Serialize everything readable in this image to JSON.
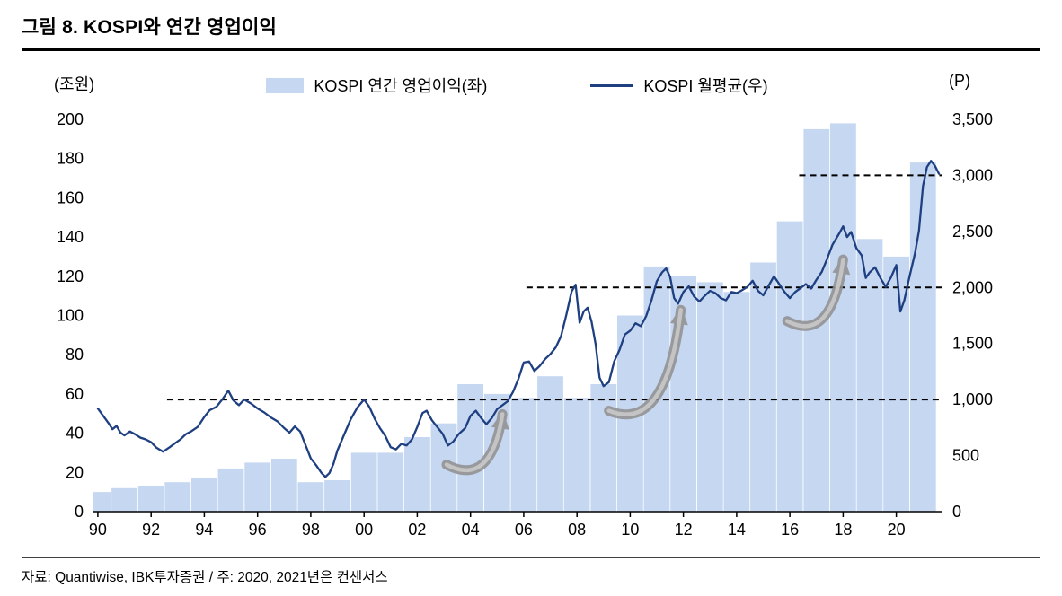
{
  "page": {
    "title": "그림 8. KOSPI와 연간 영업이익",
    "footer": "자료: Quantiwise, IBK투자증권 / 주: 2020, 2021년은 컨센서스"
  },
  "chart": {
    "left_axis_unit": "(조원)",
    "right_axis_unit": "(P)",
    "legend": {
      "bar_label": "KOSPI 연간 영업이익(좌)",
      "line_label": "KOSPI 월평균(우)"
    }
  },
  "chart_data": {
    "type": "combo",
    "title": "그림 8. KOSPI와 연간 영업이익",
    "colors": {
      "bar": "#c6d7f1",
      "line": "#1e3f80",
      "reference": "#000000",
      "arrow": "#8f8f8f",
      "arrow_highlight": "#c9c9c9"
    },
    "x_axis": {
      "min": 1989.8,
      "max": 2021.7,
      "tick_values": [
        1990,
        1992,
        1994,
        1996,
        1998,
        2000,
        2002,
        2004,
        2006,
        2008,
        2010,
        2012,
        2014,
        2016,
        2018,
        2020
      ],
      "tick_labels": [
        "90",
        "92",
        "94",
        "96",
        "98",
        "00",
        "02",
        "04",
        "06",
        "08",
        "10",
        "12",
        "14",
        "16",
        "18",
        "20"
      ]
    },
    "left_axis": {
      "label": "(조원)",
      "min": 0,
      "max": 200,
      "tick_values": [
        0,
        20,
        40,
        60,
        80,
        100,
        120,
        140,
        160,
        180,
        200
      ],
      "tick_labels": [
        "0",
        "20",
        "40",
        "60",
        "80",
        "100",
        "120",
        "140",
        "160",
        "180",
        "200"
      ]
    },
    "right_axis": {
      "label": "(P)",
      "min": 0,
      "max": 3500,
      "tick_values": [
        0,
        500,
        1000,
        1500,
        2000,
        2500,
        3000,
        3500
      ],
      "tick_labels": [
        "0",
        "500",
        "1,000",
        "1,500",
        "2,000",
        "2,500",
        "3,000",
        "3,500"
      ]
    },
    "series": [
      {
        "name": "KOSPI 연간 영업이익(좌)",
        "type": "bar",
        "axis": "left",
        "unit": "조원",
        "categories": [
          1990,
          1991,
          1992,
          1993,
          1994,
          1995,
          1996,
          1997,
          1998,
          1999,
          2000,
          2001,
          2002,
          2003,
          2004,
          2005,
          2006,
          2007,
          2008,
          2009,
          2010,
          2011,
          2012,
          2013,
          2014,
          2015,
          2016,
          2017,
          2018,
          2019,
          2020,
          2021
        ],
        "values": [
          10,
          12,
          13,
          15,
          17,
          22,
          25,
          27,
          15,
          16,
          30,
          30,
          38,
          45,
          65,
          60,
          58,
          69,
          58,
          65,
          100,
          125,
          120,
          117,
          112,
          127,
          148,
          195,
          198,
          139,
          130,
          178
        ]
      },
      {
        "name": "KOSPI 월평균(우)",
        "type": "line",
        "axis": "right",
        "unit": "P",
        "points": [
          [
            1990,
            920
          ],
          [
            1990.2,
            855
          ],
          [
            1990.4,
            790
          ],
          [
            1990.55,
            735
          ],
          [
            1990.7,
            765
          ],
          [
            1990.85,
            705
          ],
          [
            1991,
            680
          ],
          [
            1991.2,
            715
          ],
          [
            1991.4,
            690
          ],
          [
            1991.6,
            660
          ],
          [
            1991.8,
            645
          ],
          [
            1992,
            620
          ],
          [
            1992.2,
            570
          ],
          [
            1992.45,
            535
          ],
          [
            1992.7,
            575
          ],
          [
            1992.9,
            610
          ],
          [
            1993.1,
            645
          ],
          [
            1993.3,
            690
          ],
          [
            1993.5,
            715
          ],
          [
            1993.75,
            755
          ],
          [
            1994,
            845
          ],
          [
            1994.2,
            905
          ],
          [
            1994.45,
            935
          ],
          [
            1994.7,
            1010
          ],
          [
            1994.9,
            1080
          ],
          [
            1995.1,
            990
          ],
          [
            1995.3,
            950
          ],
          [
            1995.5,
            1000
          ],
          [
            1995.75,
            965
          ],
          [
            1996,
            920
          ],
          [
            1996.25,
            885
          ],
          [
            1996.5,
            840
          ],
          [
            1996.75,
            805
          ],
          [
            1997,
            745
          ],
          [
            1997.2,
            705
          ],
          [
            1997.4,
            760
          ],
          [
            1997.6,
            715
          ],
          [
            1997.8,
            595
          ],
          [
            1998,
            475
          ],
          [
            1998.2,
            415
          ],
          [
            1998.4,
            345
          ],
          [
            1998.55,
            310
          ],
          [
            1998.7,
            345
          ],
          [
            1998.85,
            425
          ],
          [
            1999,
            545
          ],
          [
            1999.25,
            685
          ],
          [
            1999.5,
            825
          ],
          [
            1999.75,
            930
          ],
          [
            2000,
            1000
          ],
          [
            2000.2,
            935
          ],
          [
            2000.4,
            830
          ],
          [
            2000.6,
            745
          ],
          [
            2000.8,
            675
          ],
          [
            2001,
            575
          ],
          [
            2001.2,
            555
          ],
          [
            2001.4,
            605
          ],
          [
            2001.6,
            590
          ],
          [
            2001.8,
            645
          ],
          [
            2002,
            755
          ],
          [
            2002.2,
            880
          ],
          [
            2002.35,
            900
          ],
          [
            2002.55,
            815
          ],
          [
            2002.75,
            755
          ],
          [
            2002.95,
            695
          ],
          [
            2003.15,
            590
          ],
          [
            2003.35,
            625
          ],
          [
            2003.55,
            690
          ],
          [
            2003.8,
            745
          ],
          [
            2004,
            855
          ],
          [
            2004.2,
            900
          ],
          [
            2004.4,
            835
          ],
          [
            2004.6,
            780
          ],
          [
            2004.8,
            835
          ],
          [
            2005,
            915
          ],
          [
            2005.2,
            950
          ],
          [
            2005.4,
            985
          ],
          [
            2005.6,
            1070
          ],
          [
            2005.8,
            1185
          ],
          [
            2006,
            1330
          ],
          [
            2006.2,
            1340
          ],
          [
            2006.4,
            1255
          ],
          [
            2006.6,
            1300
          ],
          [
            2006.8,
            1360
          ],
          [
            2007,
            1405
          ],
          [
            2007.2,
            1465
          ],
          [
            2007.4,
            1565
          ],
          [
            2007.6,
            1755
          ],
          [
            2007.8,
            1965
          ],
          [
            2007.95,
            2025
          ],
          [
            2008.1,
            1685
          ],
          [
            2008.25,
            1785
          ],
          [
            2008.4,
            1820
          ],
          [
            2008.55,
            1695
          ],
          [
            2008.7,
            1495
          ],
          [
            2008.85,
            1195
          ],
          [
            2009,
            1120
          ],
          [
            2009.2,
            1155
          ],
          [
            2009.4,
            1340
          ],
          [
            2009.6,
            1445
          ],
          [
            2009.8,
            1580
          ],
          [
            2010,
            1615
          ],
          [
            2010.2,
            1680
          ],
          [
            2010.4,
            1655
          ],
          [
            2010.6,
            1745
          ],
          [
            2010.8,
            1885
          ],
          [
            2011,
            2055
          ],
          [
            2011.2,
            2135
          ],
          [
            2011.35,
            2170
          ],
          [
            2011.5,
            2095
          ],
          [
            2011.65,
            1905
          ],
          [
            2011.8,
            1855
          ],
          [
            2012,
            1960
          ],
          [
            2012.2,
            2010
          ],
          [
            2012.4,
            1920
          ],
          [
            2012.6,
            1875
          ],
          [
            2012.8,
            1925
          ],
          [
            2013,
            1970
          ],
          [
            2013.2,
            1950
          ],
          [
            2013.4,
            1905
          ],
          [
            2013.6,
            1885
          ],
          [
            2013.8,
            1960
          ],
          [
            2014,
            1950
          ],
          [
            2014.2,
            1975
          ],
          [
            2014.4,
            2005
          ],
          [
            2014.6,
            2060
          ],
          [
            2014.8,
            1970
          ],
          [
            2015,
            1930
          ],
          [
            2015.2,
            2015
          ],
          [
            2015.4,
            2100
          ],
          [
            2015.6,
            2030
          ],
          [
            2015.8,
            1960
          ],
          [
            2016,
            1905
          ],
          [
            2016.2,
            1960
          ],
          [
            2016.4,
            1995
          ],
          [
            2016.6,
            2030
          ],
          [
            2016.8,
            1990
          ],
          [
            2017,
            2070
          ],
          [
            2017.2,
            2140
          ],
          [
            2017.4,
            2255
          ],
          [
            2017.6,
            2380
          ],
          [
            2017.85,
            2480
          ],
          [
            2018,
            2545
          ],
          [
            2018.15,
            2450
          ],
          [
            2018.3,
            2495
          ],
          [
            2018.5,
            2350
          ],
          [
            2018.7,
            2285
          ],
          [
            2018.85,
            2085
          ],
          [
            2019,
            2135
          ],
          [
            2019.2,
            2180
          ],
          [
            2019.4,
            2085
          ],
          [
            2019.6,
            2005
          ],
          [
            2019.8,
            2090
          ],
          [
            2020,
            2200
          ],
          [
            2020.15,
            1785
          ],
          [
            2020.3,
            1885
          ],
          [
            2020.5,
            2105
          ],
          [
            2020.7,
            2305
          ],
          [
            2020.85,
            2505
          ],
          [
            2021,
            2905
          ],
          [
            2021.15,
            3075
          ],
          [
            2021.3,
            3130
          ],
          [
            2021.45,
            3085
          ],
          [
            2021.6,
            3015
          ]
        ]
      }
    ],
    "reference_lines": [
      {
        "axis": "right",
        "value": 1000,
        "from_year": 1992.6
      },
      {
        "axis": "right",
        "value": 2000,
        "from_year": 2006.1
      },
      {
        "axis": "right",
        "value": 3000,
        "from_year": 2016.35
      }
    ],
    "annotations": {
      "arrows": [
        {
          "from": [
            2003.1,
            420
          ],
          "to": [
            2005.2,
            870
          ]
        },
        {
          "from": [
            2009.2,
            900
          ],
          "to": [
            2011.9,
            1800
          ]
        },
        {
          "from": [
            2015.9,
            1700
          ],
          "to": [
            2018.0,
            2250
          ]
        }
      ]
    },
    "legend_position": "top-center",
    "grid": false
  }
}
